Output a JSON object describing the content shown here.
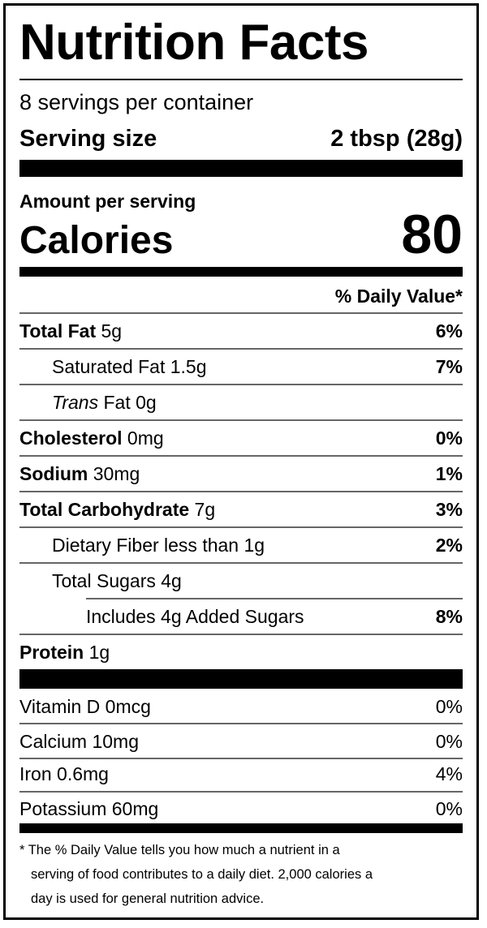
{
  "title": "Nutrition Facts",
  "servings_per_container": "8 servings per container",
  "serving_size": {
    "label": "Serving size",
    "value": "2 tbsp (28g)"
  },
  "amount_per_serving": "Amount per serving",
  "calories": {
    "label": "Calories",
    "value": "80"
  },
  "daily_value_header": "% Daily Value*",
  "nutrients": [
    {
      "name": "Total Fat",
      "amount": "5g",
      "dv": "6%"
    },
    {
      "name": "Saturated Fat",
      "amount": "1.5g",
      "dv": "7%"
    },
    {
      "name_italic": "Trans",
      "name": "Fat",
      "amount": "0g",
      "dv": ""
    },
    {
      "name": "Cholesterol",
      "amount": "0mg",
      "dv": "0%"
    },
    {
      "name": "Sodium",
      "amount": "30mg",
      "dv": "1%"
    },
    {
      "name": "Total Carbohydrate",
      "amount": "7g",
      "dv": "3%"
    },
    {
      "name": "Dietary Fiber less than",
      "amount": "1g",
      "dv": "2%"
    },
    {
      "name": "Total Sugars",
      "amount": "4g",
      "dv": ""
    },
    {
      "name": "Includes 4g Added Sugars",
      "amount": "",
      "dv": "8%"
    },
    {
      "name": "Protein",
      "amount": "1g",
      "dv": ""
    }
  ],
  "vitamins": [
    {
      "name": "Vitamin D",
      "amount": "0mcg",
      "dv": "0%"
    },
    {
      "name": "Calcium",
      "amount": "10mg",
      "dv": "0%"
    },
    {
      "name": "Iron",
      "amount": "0.6mg",
      "dv": "4%"
    },
    {
      "name": "Potassium",
      "amount": "60mg",
      "dv": "0%"
    }
  ],
  "footnote": {
    "line1": "* The  % Daily Value tells you how much a nutrient in a",
    "line2": "serving of food contributes to a daily diet. 2,000 calories a",
    "line3": "day is used for general nutrition advice."
  }
}
